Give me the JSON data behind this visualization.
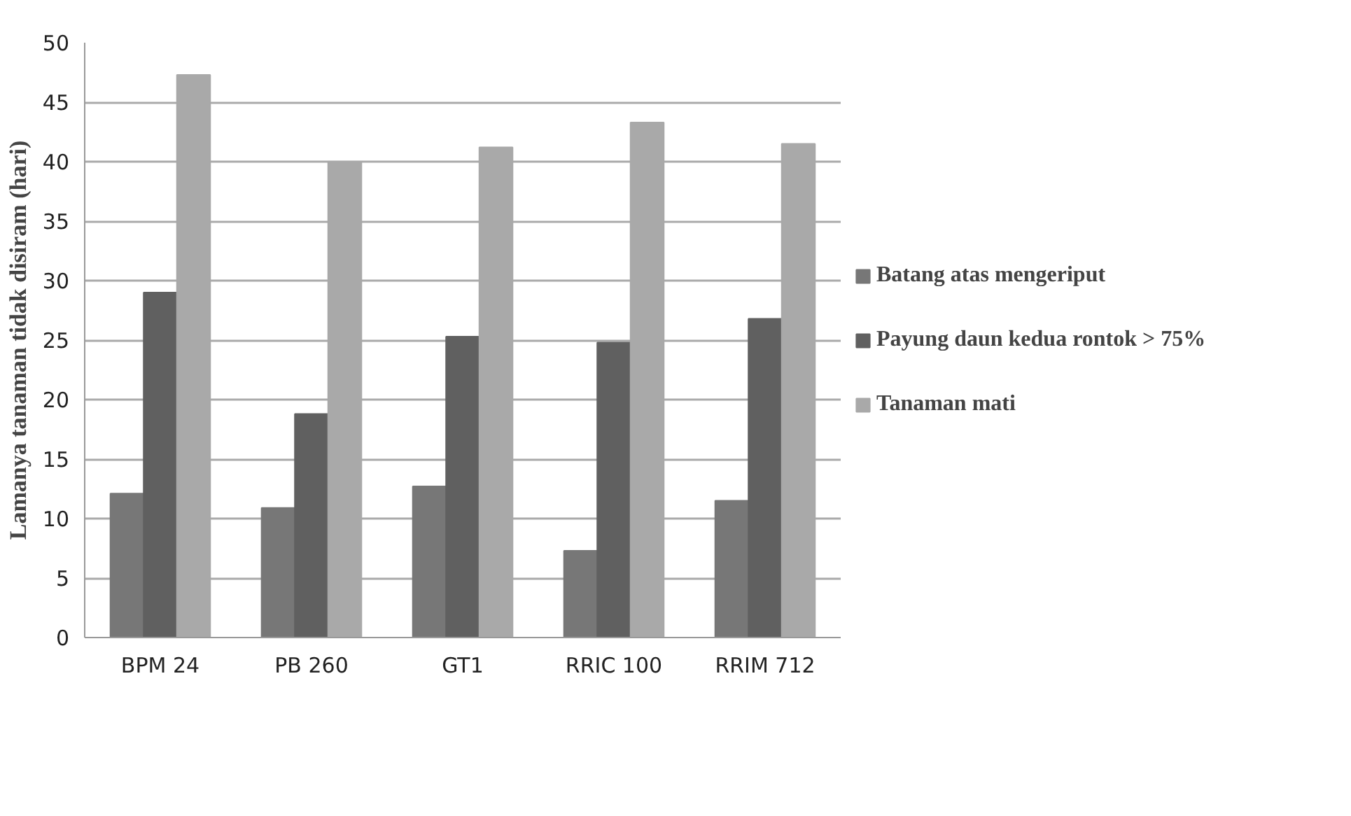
{
  "chart_data": {
    "type": "bar",
    "ylabel": "Lamanya tanaman tidak disiram (hari)",
    "categories": [
      "BPM 24",
      "PB 260",
      "GT1",
      "RRIC 100",
      "RRIM 712"
    ],
    "series": [
      {
        "name": "Batang atas mengeriput",
        "color": "#777777",
        "values": [
          12.1,
          10.9,
          12.7,
          7.3,
          11.5
        ]
      },
      {
        "name": "Payung daun kedua rontok > 75%",
        "color": "#606060",
        "values": [
          29.0,
          18.8,
          25.3,
          24.8,
          26.8
        ]
      },
      {
        "name": "Tanaman mati",
        "color": "#a9a9a9",
        "values": [
          47.3,
          40.0,
          41.2,
          43.3,
          41.5
        ]
      }
    ],
    "ylim": [
      0,
      50
    ],
    "yticks": [
      0,
      5,
      10,
      15,
      20,
      25,
      30,
      35,
      40,
      45,
      50
    ],
    "grid": "y",
    "legend": "right"
  }
}
